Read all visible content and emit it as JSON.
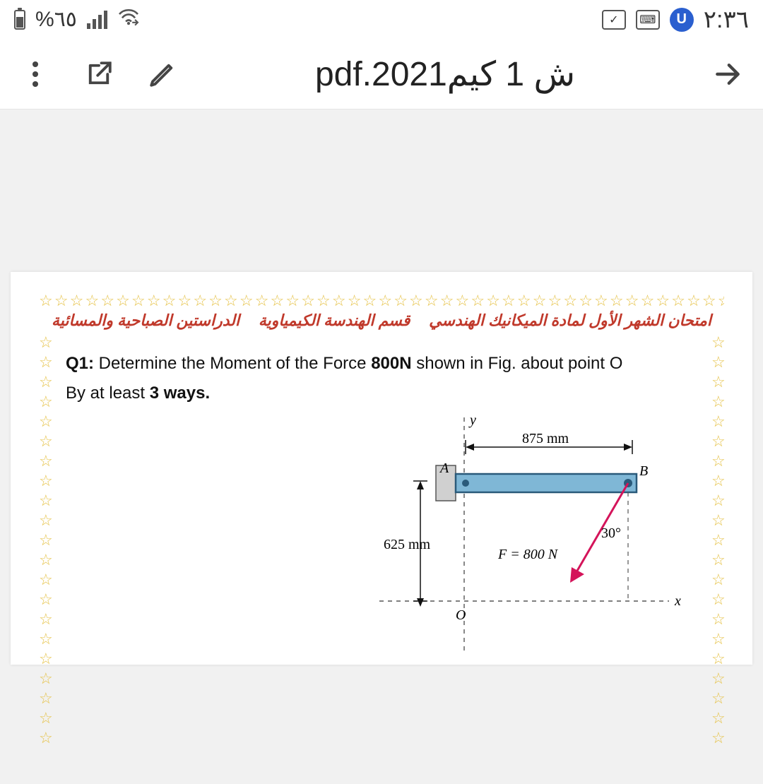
{
  "status": {
    "battery_text": "%٦٥",
    "time_text": "٢:٣٦",
    "u_badge": "U"
  },
  "appbar": {
    "title": "ش 1 كيم2021.pdf"
  },
  "doc": {
    "header": {
      "part1": "امتحان الشهر الأول لمادة الميكانيك الهندسي",
      "part2": "قسم الهندسة الكيمياوية",
      "part3": "الدراستين الصباحية والمسائية"
    },
    "q1": {
      "label": "Q1:",
      "text_a": " Determine the Moment of the Force ",
      "force_bold": "800N",
      "text_b": " shown in Fig. about point O",
      "line2_a": "By at least ",
      "line2_bold": "3 ways.",
      "figure": {
        "dim_top": "875 mm",
        "dim_left": "625 mm",
        "labelA": "A",
        "labelB": "B",
        "force_label": "F = 800 N",
        "angle": "30°",
        "axis_x": "x",
        "axis_y": "y",
        "origin": "O",
        "bar_color": "#7fb7d6",
        "bar_stroke": "#2a5a7a",
        "wall_fill": "#d0d0d0",
        "force_color": "#d4145a",
        "text_color": "#111111"
      }
    },
    "star_char": "☆"
  }
}
